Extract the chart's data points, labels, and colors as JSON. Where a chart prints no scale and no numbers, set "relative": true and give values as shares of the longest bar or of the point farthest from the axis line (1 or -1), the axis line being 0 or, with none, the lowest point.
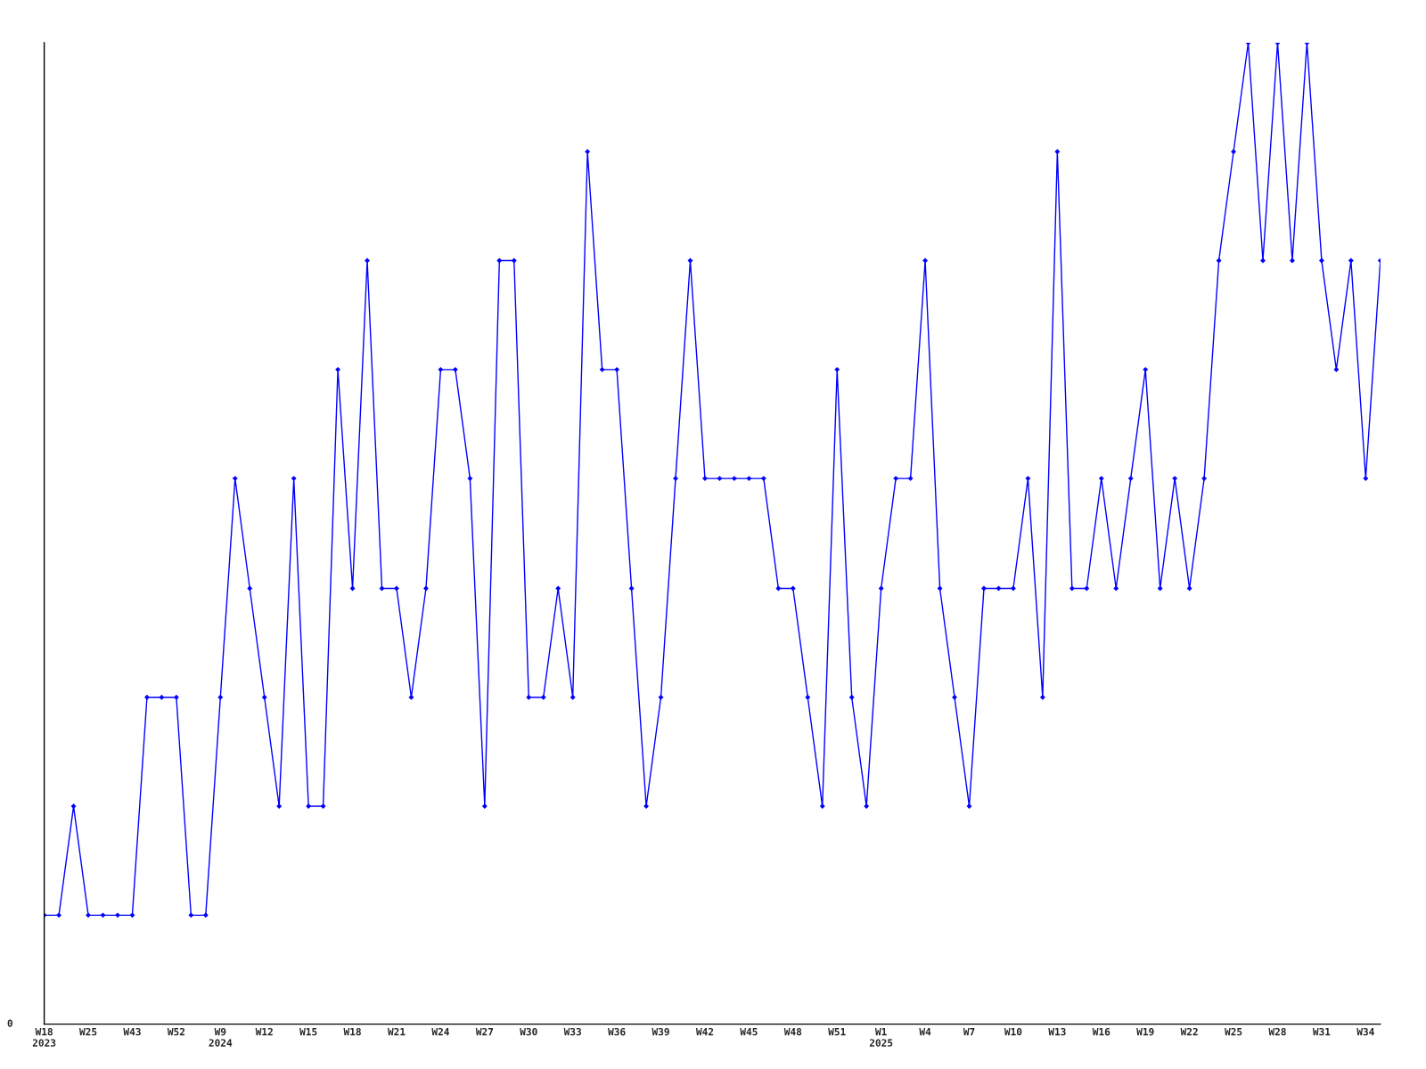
{
  "chart_data": {
    "type": "line",
    "relative": true,
    "marker": "diamond",
    "categories": [
      "W18\n2023",
      null,
      null,
      "W25",
      null,
      null,
      "W43",
      null,
      null,
      "W52",
      null,
      null,
      "W9\n2024",
      null,
      null,
      "W12",
      null,
      null,
      "W15",
      null,
      null,
      "W18",
      null,
      null,
      "W21",
      null,
      null,
      "W24",
      null,
      null,
      "W27",
      null,
      null,
      "W30",
      null,
      null,
      "W33",
      null,
      null,
      "W36",
      null,
      null,
      "W39",
      null,
      null,
      "W42",
      null,
      null,
      "W45",
      null,
      null,
      "W48",
      null,
      null,
      "W51",
      null,
      null,
      "W1\n2025",
      null,
      null,
      "W4",
      null,
      null,
      "W7",
      null,
      null,
      "W10",
      null,
      null,
      "W13",
      null,
      null,
      "W16",
      null,
      null,
      "W19",
      null,
      null,
      "W22",
      null,
      null,
      "W25",
      null,
      null,
      "W28",
      null,
      null,
      "W31",
      null,
      null,
      "W34",
      null
    ],
    "series": [
      {
        "color": "#0000ff",
        "values": [
          0.111,
          0.111,
          0.222,
          0.111,
          0.111,
          0.111,
          0.111,
          0.333,
          0.333,
          0.333,
          0.111,
          0.111,
          0.333,
          0.556,
          0.444,
          0.333,
          0.222,
          0.556,
          0.222,
          0.222,
          0.667,
          0.444,
          0.778,
          0.444,
          0.444,
          0.333,
          0.444,
          0.667,
          0.667,
          0.556,
          0.222,
          0.778,
          0.778,
          0.333,
          0.333,
          0.444,
          0.333,
          0.889,
          0.667,
          0.667,
          0.444,
          0.222,
          0.333,
          0.556,
          0.778,
          0.556,
          0.556,
          0.556,
          0.556,
          0.556,
          0.444,
          0.444,
          0.333,
          0.222,
          0.667,
          0.333,
          0.222,
          0.444,
          0.556,
          0.556,
          0.778,
          0.444,
          0.333,
          0.222,
          0.444,
          0.444,
          0.444,
          0.556,
          0.333,
          0.889,
          0.444,
          0.444,
          0.556,
          0.444,
          0.556,
          0.667,
          0.444,
          0.556,
          0.444,
          0.556,
          0.778,
          0.889,
          1,
          0.778,
          1,
          0.778,
          1,
          0.778,
          0.667,
          0.778,
          0.556,
          0.778
        ]
      }
    ],
    "annotations": [
      "0"
    ]
  }
}
